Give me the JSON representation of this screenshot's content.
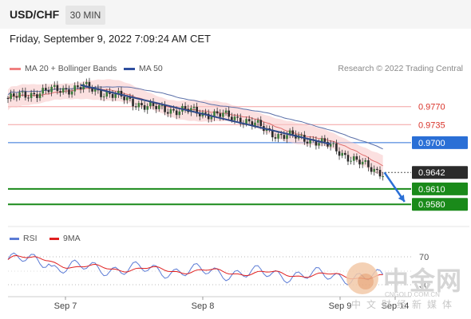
{
  "header": {
    "symbol": "USD/CHF",
    "timeframe": "30 MIN"
  },
  "timestamp": "Friday, September 9, 2022 7:09:24 AM CET",
  "legend": {
    "items": [
      {
        "label": "MA 20 + Bollinger Bands",
        "color": "#f08080"
      },
      {
        "label": "MA 50",
        "color": "#2f4f9f"
      }
    ],
    "credit": "Research © 2022 Trading Central"
  },
  "rsi_legend": {
    "items": [
      {
        "label": "RSI",
        "color": "#5b7bd5"
      },
      {
        "label": "9MA",
        "color": "#e02020"
      }
    ]
  },
  "watermark": {
    "main": "中金网",
    "url": "CNGOLD.COM.CN",
    "sub": "中文财经新媒体"
  },
  "chart_data": {
    "type": "candlestick",
    "instrument": "USD/CHF",
    "ylim": [
      0.954,
      0.983
    ],
    "x_labels": [
      "Sep 7",
      "Sep 8",
      "Sep 9",
      "Sep 14"
    ],
    "levels": [
      {
        "value": 0.977,
        "label": "0.9770",
        "style": "resistance-line",
        "color": "#f4a0a0"
      },
      {
        "value": 0.9735,
        "label": "0.9735",
        "style": "resistance-line",
        "color": "#f4a0a0"
      },
      {
        "value": 0.97,
        "label": "0.9700",
        "style": "pivot",
        "color": "#2a6fd6"
      },
      {
        "value": 0.9642,
        "label": "0.9642",
        "style": "last-price",
        "color": "#333333"
      },
      {
        "value": 0.961,
        "label": "0.9610",
        "style": "support-target",
        "color": "#1a8a1a"
      },
      {
        "value": 0.958,
        "label": "0.9580",
        "style": "support-target",
        "color": "#1a8a1a"
      }
    ],
    "series": [
      {
        "name": "MA 20 + Bollinger Bands",
        "color": "#f08080"
      },
      {
        "name": "MA 50",
        "color": "#2f4f9f"
      }
    ],
    "trendline": {
      "from": [
        0.18,
        0.9812
      ],
      "to": [
        0.8,
        0.9697
      ]
    },
    "forecast_arrow": {
      "from": [
        0.815,
        0.9642
      ],
      "to": [
        0.865,
        0.9585
      ]
    },
    "rsi": {
      "levels": [
        70,
        30
      ],
      "level_labels": [
        "70",
        "30"
      ],
      "series": [
        {
          "name": "RSI",
          "color": "#5b7bd5"
        },
        {
          "name": "9MA",
          "color": "#e02020"
        }
      ]
    }
  }
}
